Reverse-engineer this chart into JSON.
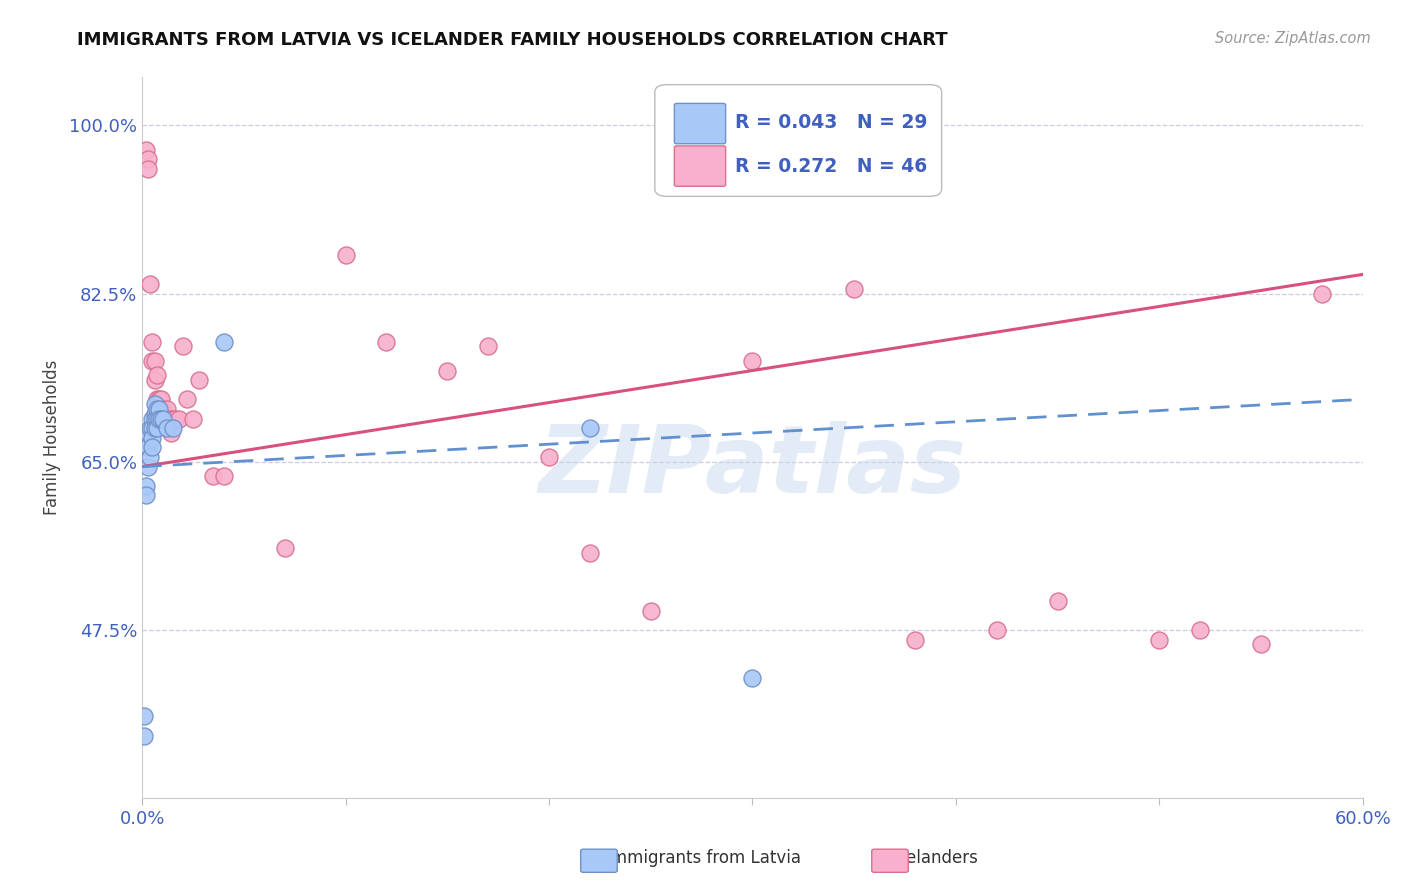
{
  "title": "IMMIGRANTS FROM LATVIA VS ICELANDER FAMILY HOUSEHOLDS CORRELATION CHART",
  "source": "Source: ZipAtlas.com",
  "ylabel": "Family Households",
  "yticks": [
    47.5,
    65.0,
    82.5,
    100.0
  ],
  "ytick_labels": [
    "47.5%",
    "65.0%",
    "82.5%",
    "100.0%"
  ],
  "legend_text_blue": "R = 0.043   N = 29",
  "legend_text_pink": "R = 0.272   N = 46",
  "scatter_blue_x": [
    0.001,
    0.001,
    0.002,
    0.002,
    0.003,
    0.003,
    0.003,
    0.004,
    0.004,
    0.005,
    0.005,
    0.005,
    0.005,
    0.006,
    0.006,
    0.006,
    0.006,
    0.007,
    0.007,
    0.007,
    0.008,
    0.008,
    0.009,
    0.01,
    0.012,
    0.015,
    0.04,
    0.22,
    0.3
  ],
  "scatter_blue_y": [
    0.385,
    0.365,
    0.625,
    0.615,
    0.68,
    0.665,
    0.645,
    0.685,
    0.655,
    0.695,
    0.685,
    0.675,
    0.665,
    0.71,
    0.7,
    0.695,
    0.685,
    0.705,
    0.695,
    0.685,
    0.705,
    0.695,
    0.695,
    0.695,
    0.685,
    0.685,
    0.775,
    0.685,
    0.425
  ],
  "scatter_pink_x": [
    0.002,
    0.003,
    0.003,
    0.004,
    0.005,
    0.005,
    0.006,
    0.006,
    0.007,
    0.007,
    0.008,
    0.008,
    0.009,
    0.009,
    0.01,
    0.01,
    0.011,
    0.012,
    0.013,
    0.014,
    0.015,
    0.016,
    0.018,
    0.02,
    0.022,
    0.025,
    0.028,
    0.035,
    0.04,
    0.07,
    0.1,
    0.12,
    0.15,
    0.17,
    0.2,
    0.22,
    0.25,
    0.3,
    0.35,
    0.38,
    0.42,
    0.45,
    0.5,
    0.52,
    0.55,
    0.58
  ],
  "scatter_pink_y": [
    0.975,
    0.965,
    0.955,
    0.835,
    0.775,
    0.755,
    0.755,
    0.735,
    0.74,
    0.715,
    0.715,
    0.695,
    0.715,
    0.695,
    0.705,
    0.695,
    0.7,
    0.705,
    0.695,
    0.68,
    0.695,
    0.695,
    0.695,
    0.77,
    0.715,
    0.695,
    0.735,
    0.635,
    0.635,
    0.56,
    0.865,
    0.775,
    0.745,
    0.77,
    0.655,
    0.555,
    0.495,
    0.755,
    0.83,
    0.465,
    0.475,
    0.505,
    0.465,
    0.475,
    0.46,
    0.825
  ],
  "blue_line_x": [
    0.0,
    0.6
  ],
  "blue_line_y": [
    0.645,
    0.715
  ],
  "pink_line_x": [
    0.0,
    0.6
  ],
  "pink_line_y": [
    0.645,
    0.845
  ],
  "blue_scatter_color": "#a8c8f8",
  "blue_scatter_edge": "#7090c8",
  "pink_scatter_color": "#f8b0cc",
  "pink_scatter_edge": "#d87090",
  "blue_line_color": "#6090d0",
  "pink_line_color": "#d85080",
  "watermark_text": "ZIPatlas",
  "watermark_color": "#c8d8f0",
  "background": "#ffffff",
  "grid_color": "#ccccdd",
  "tick_color": "#4060c0",
  "axis_color": "#cccccc",
  "title_color": "#111111",
  "source_color": "#999999",
  "ylabel_color": "#444444",
  "xlim": [
    0.0,
    0.6
  ],
  "ylim": [
    0.3,
    1.05
  ],
  "xtick_positions": [
    0.0,
    0.1,
    0.2,
    0.3,
    0.4,
    0.5,
    0.6
  ],
  "xtick_labels": [
    "0.0%",
    "",
    "",
    "",
    "",
    "",
    "60.0%"
  ]
}
